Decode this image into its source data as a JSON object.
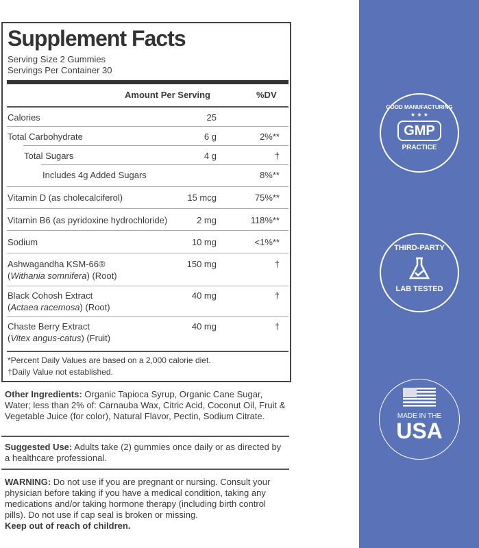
{
  "title": "Supplement Facts",
  "serving_size": "Serving Size 2 Gummies",
  "servings_per_container": "Servings Per Container 30",
  "header": {
    "amount": "Amount Per Serving",
    "dv": "%DV"
  },
  "rows": [
    {
      "name": "Calories",
      "name2": "",
      "amount": "25",
      "dv": ""
    },
    {
      "name": "Total Carbohydrate",
      "name2": "",
      "amount": "6 g",
      "dv": "2%**"
    },
    {
      "name": "Total Sugars",
      "name2": "",
      "amount": "4 g",
      "dv": "†"
    },
    {
      "name": "Includes 4g Added Sugars",
      "name2": "",
      "amount": "",
      "dv": "8%**"
    },
    {
      "name": "Vitamin D (as cholecalciferol)",
      "name2": "",
      "amount": "15 mcg",
      "dv": "75%**"
    },
    {
      "name": "Vitamin B6 (as pyridoxine hydrochloride)",
      "name2": "",
      "amount": "2 mg",
      "dv": "118%**"
    },
    {
      "name": "Sodium",
      "name2": "",
      "amount": "10 mg",
      "dv": "<1%**"
    },
    {
      "name": "Ashwagandha KSM-66®",
      "name2_italic": "Withania somnifera",
      "name2": " (Root)",
      "amount": "150 mg",
      "dv": "†"
    },
    {
      "name": "Black Cohosh Extract",
      "name2_italic": "Actaea racemosa",
      "name2": " (Root)",
      "amount": "40 mg",
      "dv": "†"
    },
    {
      "name": "Chaste Berry Extract",
      "name2_italic": "Vitex angus-catus",
      "name2": " (Fruit)",
      "amount": "40 mg",
      "dv": "†"
    }
  ],
  "footnotes": [
    "*Percent Daily Values are based on a 2,000 calorie diet.",
    "†Daily Value not established."
  ],
  "other_ingredients": {
    "label": "Other Ingredients:",
    "text": " Organic Tapioca Syrup, Organic Cane Sugar, Water; less than 2% of: Carnauba Wax, Citric Acid, Coconut Oil, Fruit & Vegetable Juice (for color), Natural Flavor, Pectin, Sodium Citrate."
  },
  "suggested_use": {
    "label": "Suggested Use:",
    "text": " Adults take (2) gummies once daily or as directed by a healthcare professional."
  },
  "warning": {
    "label": "WARNING:",
    "text": " Do not use if you are pregnant or nursing. Consult your physician before taking if you have a medical condition, taking any medications and/or taking hormone therapy (including birth control pills). Do not use if cap seal is broken or missing.",
    "keep_out": "Keep out of reach of children."
  },
  "badges": {
    "gmp": {
      "top": "GOOD MANUFACTURING",
      "center": "GMP",
      "bottom": "PRACTICE"
    },
    "lab": {
      "top": "THIRD-PARTY",
      "bottom": "LAB TESTED"
    },
    "usa": {
      "small": "MADE IN THE",
      "big": "USA"
    }
  },
  "colors": {
    "panel": "#5a72b8"
  }
}
